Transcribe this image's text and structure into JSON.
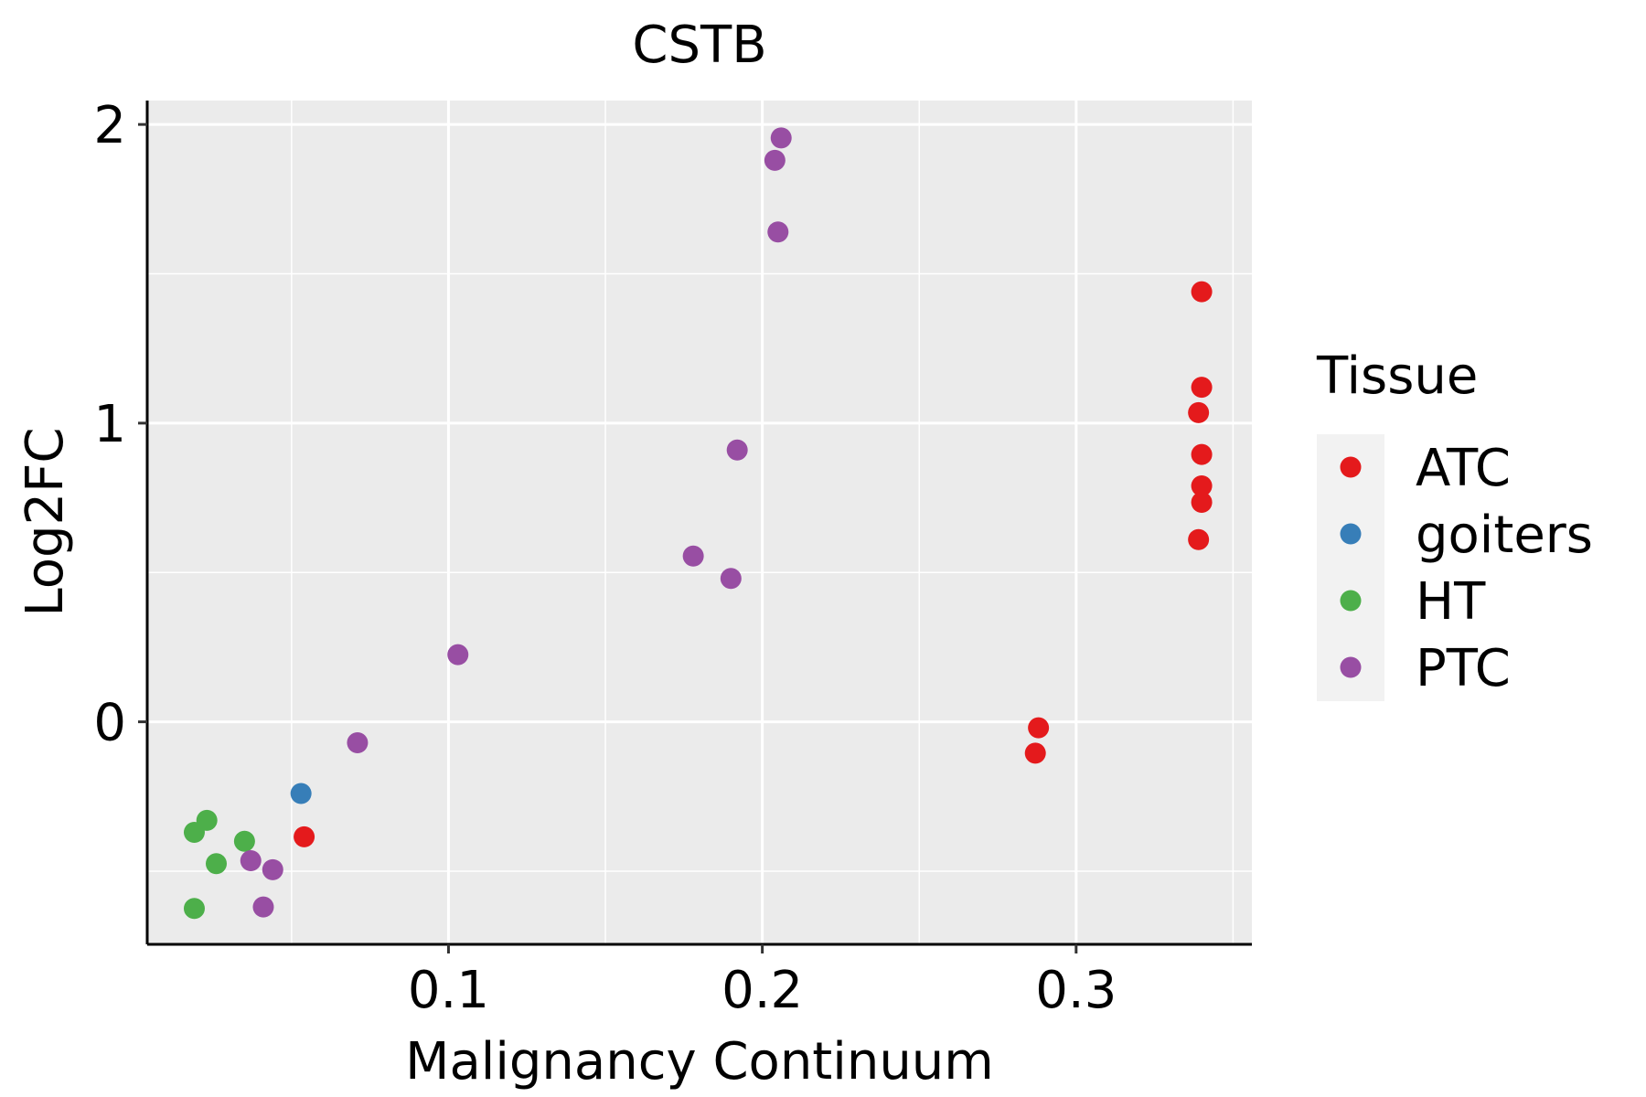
{
  "chart_data": {
    "type": "scatter",
    "title": "CSTB",
    "xlabel": "Malignancy Continuum",
    "ylabel": "Log2FC",
    "xlim": [
      0.004,
      0.356
    ],
    "ylim": [
      -0.745,
      2.08
    ],
    "xticks": [
      0.1,
      0.2,
      0.3
    ],
    "xtick_labels": [
      "0.1",
      "0.2",
      "0.3"
    ],
    "xminor": [
      0.05,
      0.15,
      0.25,
      0.35
    ],
    "yticks": [
      0,
      1,
      2
    ],
    "ytick_labels": [
      "0",
      "1",
      "2"
    ],
    "yminor": [
      -0.5,
      0.5,
      1.5
    ],
    "grid": true,
    "legend": {
      "title": "Tissue",
      "position": "right",
      "entries": [
        "ATC",
        "goiters",
        "HT",
        "PTC"
      ]
    },
    "colors": {
      "ATC": "#e41a1c",
      "goiters": "#377eb8",
      "HT": "#4daf4a",
      "PTC": "#984ea3",
      "panel": "#ebebeb",
      "grid": "#ffffff"
    },
    "series": [
      {
        "name": "ATC",
        "points": [
          [
            0.34,
            1.44
          ],
          [
            0.34,
            1.12
          ],
          [
            0.339,
            1.035
          ],
          [
            0.34,
            0.895
          ],
          [
            0.34,
            0.79
          ],
          [
            0.34,
            0.735
          ],
          [
            0.339,
            0.61
          ],
          [
            0.288,
            -0.02
          ],
          [
            0.287,
            -0.105
          ],
          [
            0.054,
            -0.385
          ]
        ]
      },
      {
        "name": "goiters",
        "points": [
          [
            0.053,
            -0.24
          ]
        ]
      },
      {
        "name": "HT",
        "points": [
          [
            0.023,
            -0.33
          ],
          [
            0.019,
            -0.37
          ],
          [
            0.035,
            -0.4
          ],
          [
            0.026,
            -0.475
          ],
          [
            0.019,
            -0.625
          ]
        ]
      },
      {
        "name": "PTC",
        "points": [
          [
            0.206,
            1.955
          ],
          [
            0.204,
            1.88
          ],
          [
            0.205,
            1.64
          ],
          [
            0.192,
            0.91
          ],
          [
            0.178,
            0.555
          ],
          [
            0.19,
            0.48
          ],
          [
            0.103,
            0.225
          ],
          [
            0.071,
            -0.07
          ],
          [
            0.037,
            -0.465
          ],
          [
            0.044,
            -0.495
          ],
          [
            0.041,
            -0.62
          ]
        ]
      }
    ]
  }
}
